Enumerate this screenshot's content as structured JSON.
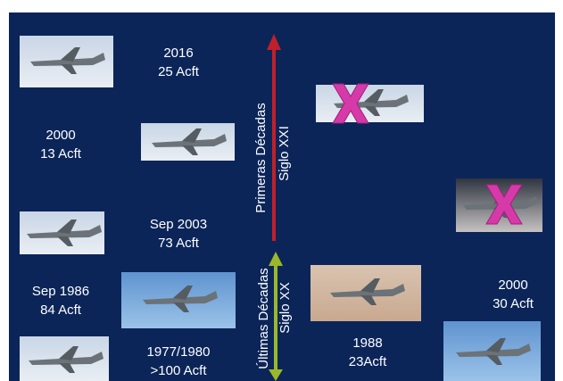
{
  "labels": [
    {
      "year": "2016",
      "count": "25 Acft"
    },
    {
      "year": "2000",
      "count": "13 Acft"
    },
    {
      "year": "Sep 2003",
      "count": "73 Acft"
    },
    {
      "year": "Sep 1986",
      "count": "84 Acft"
    },
    {
      "year": "1977/1980",
      "count": ">100 Acft"
    },
    {
      "year": "1988",
      "count": "23Acft"
    },
    {
      "year": "2000",
      "count": "30 Acft"
    }
  ],
  "axis": {
    "upper": {
      "title": "Primeras Décadas",
      "subtitle": "Siglo XXI"
    },
    "lower": {
      "title": "Últimas Décadas",
      "subtitle": "Siglo XX"
    }
  }
}
